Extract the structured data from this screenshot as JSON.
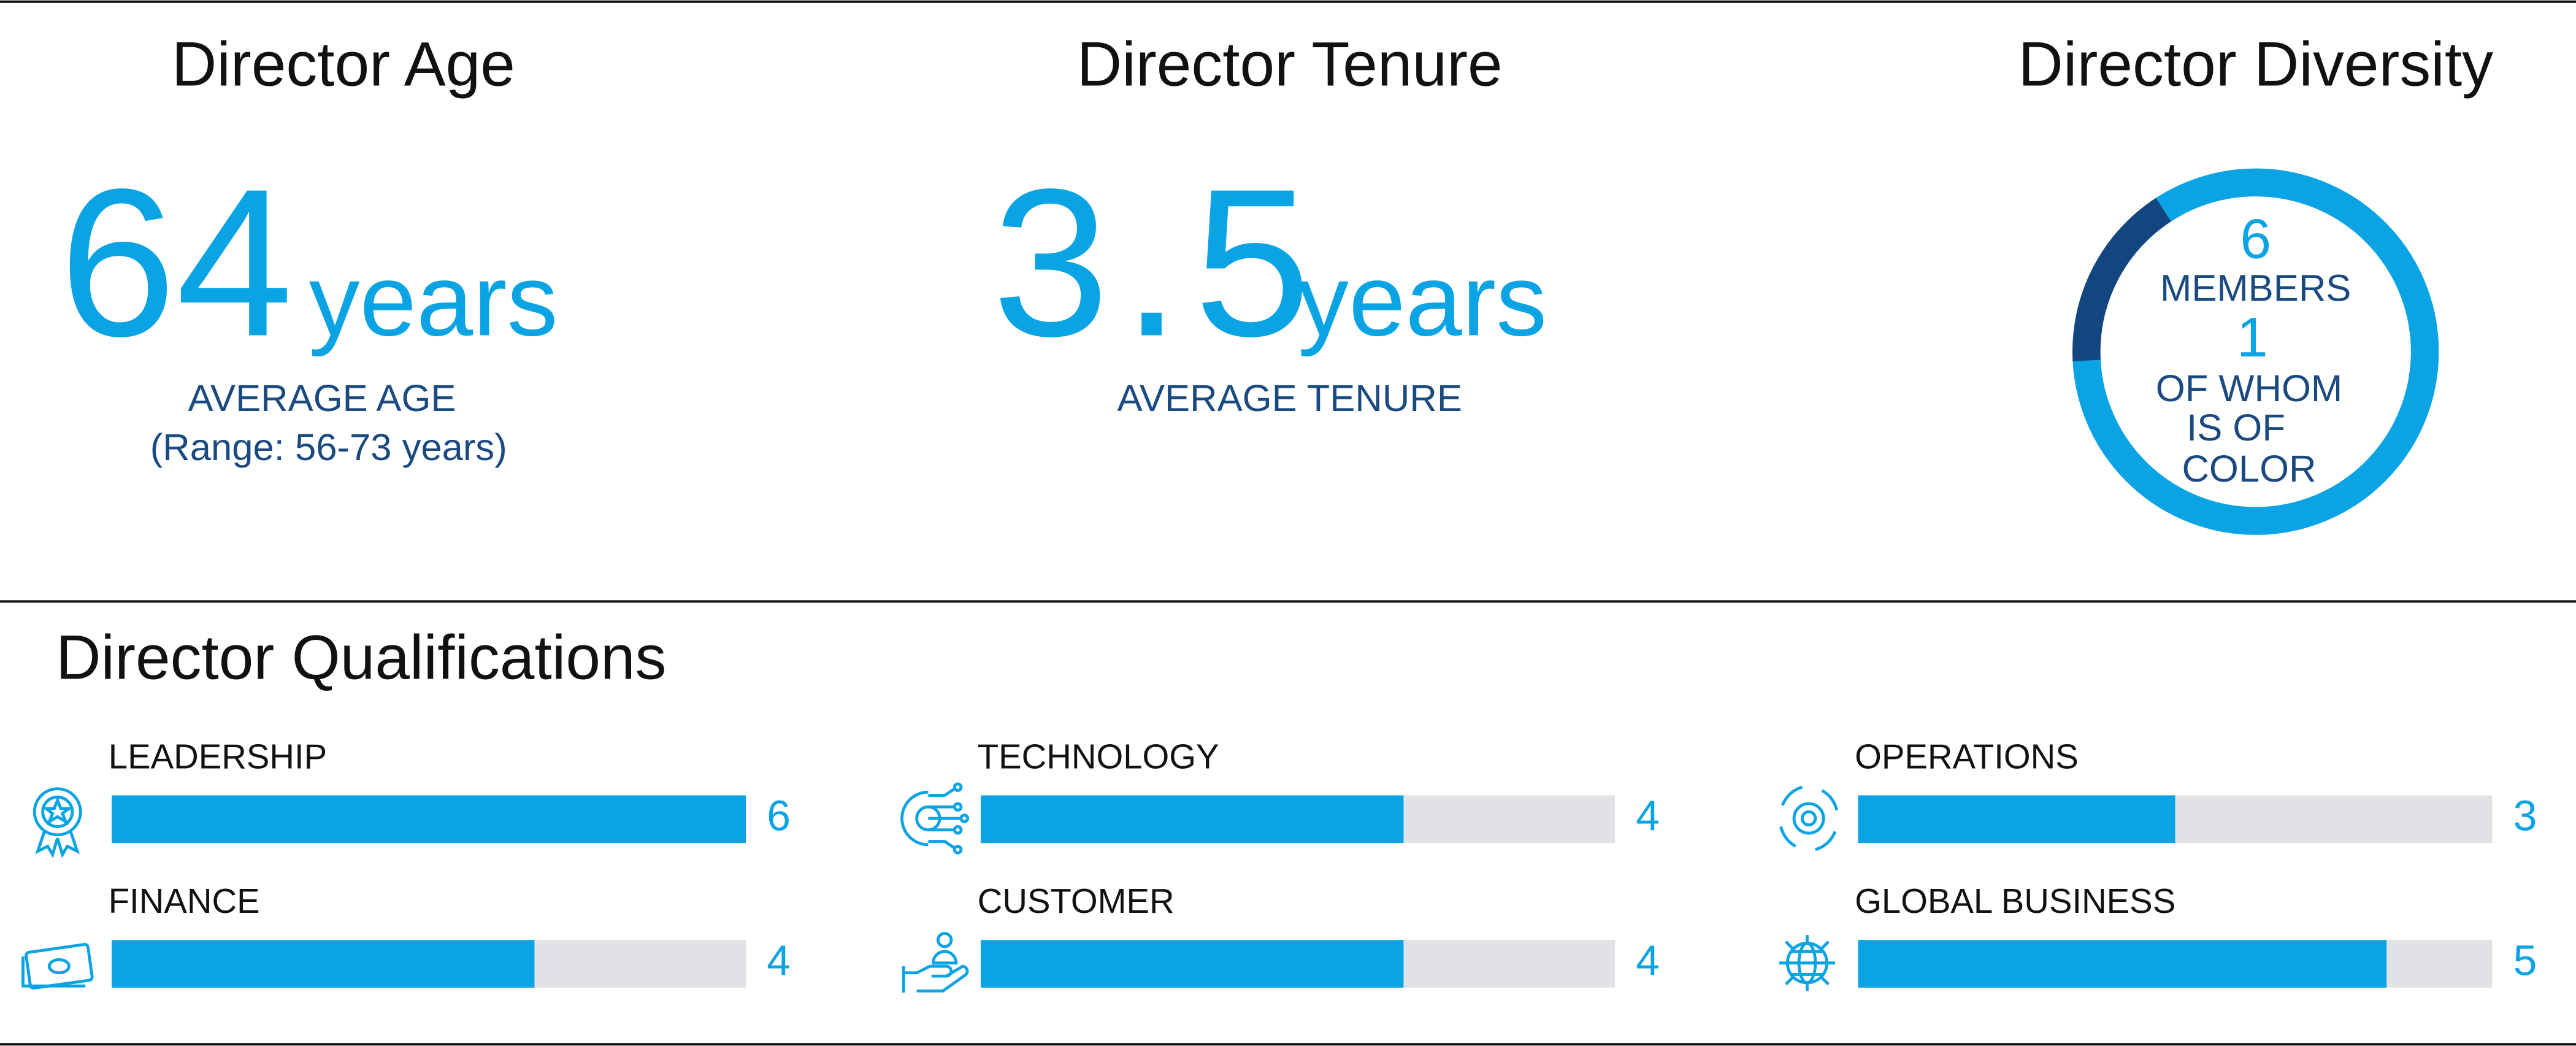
{
  "age": {
    "title": "Director Age",
    "value": "64",
    "unit": "years",
    "caption": "AVERAGE AGE",
    "range": "(Range: 56-73 years)"
  },
  "tenure": {
    "title": "Director Tenure",
    "value": "3.5",
    "unit": "years",
    "caption": "AVERAGE TENURE"
  },
  "diversity": {
    "title": "Director Diversity",
    "members": {
      "value": 6,
      "label": "MEMBERS"
    },
    "of_color": {
      "value": 1,
      "lines": [
        "OF WHOM",
        "IS OF",
        "COLOR"
      ]
    },
    "colors": {
      "members": "#0aa3e3",
      "of_color": "#13457f"
    }
  },
  "qualifications": {
    "title": "Director Qualifications",
    "xlim": [
      0,
      6
    ],
    "bar_color": "#0aa3e3",
    "track_color": "#e1e2e6",
    "items": [
      {
        "label": "LEADERSHIP",
        "value": 6
      },
      {
        "label": "TECHNOLOGY",
        "value": 4
      },
      {
        "label": "OPERATIONS",
        "value": 3
      },
      {
        "label": "FINANCE",
        "value": 4
      },
      {
        "label": "CUSTOMER",
        "value": 4
      },
      {
        "label": "GLOBAL BUSINESS",
        "value": 5
      }
    ]
  }
}
